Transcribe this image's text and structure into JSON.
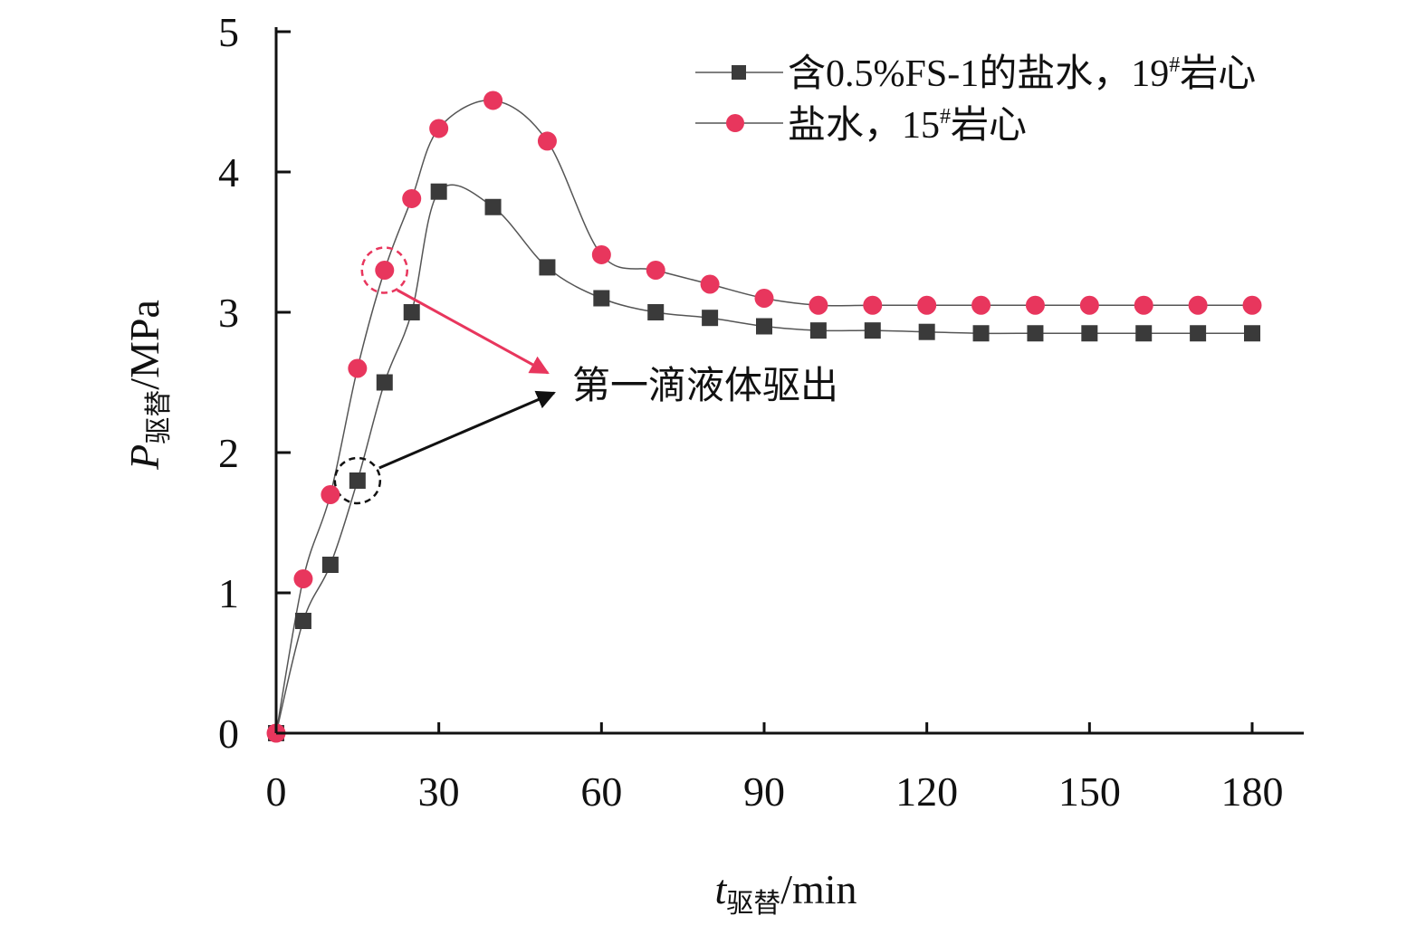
{
  "chart_data": {
    "type": "line",
    "xlim": [
      0,
      180
    ],
    "ylim": [
      0,
      5
    ],
    "x_ticks": [
      0,
      30,
      60,
      90,
      120,
      150,
      180
    ],
    "y_ticks": [
      0,
      1,
      2,
      3,
      4,
      5
    ],
    "x_tick_labels": [
      "0",
      "30",
      "60",
      "90",
      "120",
      "150",
      "180"
    ],
    "y_tick_labels": [
      "0",
      "1",
      "2",
      "3",
      "4",
      "5"
    ],
    "xlabel": {
      "main": "t",
      "sub": "驱替",
      "unit": "/min"
    },
    "ylabel": {
      "main": "P",
      "sub": "驱替",
      "unit": "/MPa"
    },
    "legend_position": "top-right",
    "grid": false,
    "series": [
      {
        "legend_prefix": "含0.5%FS-1的盐水，19",
        "legend_sup": "#",
        "legend_suffix": "岩心",
        "marker": "square",
        "color": "#3a3a3a",
        "line_color": "#555555",
        "points": [
          [
            0,
            0
          ],
          [
            5,
            0.8
          ],
          [
            10,
            1.2
          ],
          [
            15,
            1.8
          ],
          [
            20,
            2.5
          ],
          [
            25,
            3.0
          ],
          [
            30,
            3.86
          ],
          [
            40,
            3.75
          ],
          [
            50,
            3.32
          ],
          [
            60,
            3.1
          ],
          [
            70,
            3.0
          ],
          [
            80,
            2.96
          ],
          [
            90,
            2.9
          ],
          [
            100,
            2.87
          ],
          [
            110,
            2.87
          ],
          [
            120,
            2.86
          ],
          [
            130,
            2.85
          ],
          [
            140,
            2.85
          ],
          [
            150,
            2.85
          ],
          [
            160,
            2.85
          ],
          [
            170,
            2.85
          ],
          [
            180,
            2.85
          ]
        ]
      },
      {
        "legend_prefix": "盐水，15",
        "legend_sup": "#",
        "legend_suffix": "岩心",
        "marker": "circle",
        "color": "#e8365d",
        "line_color": "#555555",
        "points": [
          [
            0,
            0
          ],
          [
            5,
            1.1
          ],
          [
            10,
            1.7
          ],
          [
            15,
            2.6
          ],
          [
            20,
            3.3
          ],
          [
            25,
            3.81
          ],
          [
            30,
            4.31
          ],
          [
            40,
            4.51
          ],
          [
            50,
            4.22
          ],
          [
            60,
            3.41
          ],
          [
            70,
            3.3
          ],
          [
            80,
            3.2
          ],
          [
            90,
            3.1
          ],
          [
            100,
            3.05
          ],
          [
            110,
            3.05
          ],
          [
            120,
            3.05
          ],
          [
            130,
            3.05
          ],
          [
            140,
            3.05
          ],
          [
            150,
            3.05
          ],
          [
            160,
            3.05
          ],
          [
            170,
            3.05
          ],
          [
            180,
            3.05
          ]
        ]
      }
    ],
    "annotation": {
      "text": "第一滴液体驱出",
      "targets": [
        {
          "series": 0,
          "x": 15,
          "y": 1.8,
          "color": "#111111"
        },
        {
          "series": 1,
          "x": 20,
          "y": 3.3,
          "color": "#e8365d"
        }
      ]
    }
  }
}
